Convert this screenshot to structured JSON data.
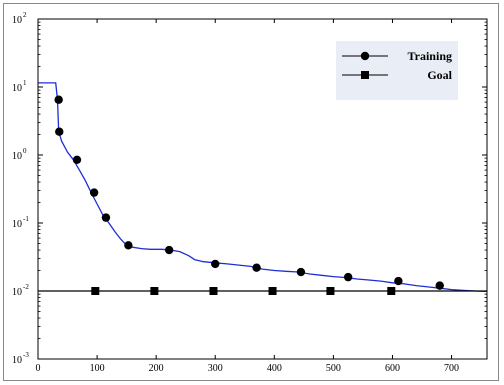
{
  "chart_data": {
    "type": "line",
    "title": "",
    "xlabel": "",
    "ylabel": "",
    "xlim": [
      0,
      760
    ],
    "ylim": [
      0.001,
      100
    ],
    "yscale": "log",
    "grid": false,
    "legend_position": "top-right",
    "x_ticks": [
      0,
      100,
      200,
      300,
      400,
      500,
      600,
      700
    ],
    "y_ticks": [
      {
        "base": "10",
        "exp": "-3",
        "value": 0.001
      },
      {
        "base": "10",
        "exp": "-2",
        "value": 0.01
      },
      {
        "base": "10",
        "exp": "-1",
        "value": 0.1
      },
      {
        "base": "10",
        "exp": "0",
        "value": 1
      },
      {
        "base": "10",
        "exp": "1",
        "value": 10
      },
      {
        "base": "10",
        "exp": "2",
        "value": 100
      }
    ],
    "series": [
      {
        "name": "Training",
        "color": "#1f2dd8",
        "marker": "circle",
        "curve": [
          [
            0,
            11.5
          ],
          [
            30,
            11.5
          ],
          [
            33,
            6.5
          ],
          [
            35,
            2.2
          ],
          [
            40,
            1.6
          ],
          [
            50,
            1.1
          ],
          [
            60,
            0.85
          ],
          [
            70,
            0.6
          ],
          [
            80,
            0.42
          ],
          [
            90,
            0.28
          ],
          [
            100,
            0.19
          ],
          [
            110,
            0.13
          ],
          [
            120,
            0.1
          ],
          [
            130,
            0.075
          ],
          [
            140,
            0.058
          ],
          [
            150,
            0.047
          ],
          [
            160,
            0.044
          ],
          [
            175,
            0.042
          ],
          [
            190,
            0.041
          ],
          [
            210,
            0.041
          ],
          [
            225,
            0.04
          ],
          [
            240,
            0.038
          ],
          [
            255,
            0.033
          ],
          [
            265,
            0.029
          ],
          [
            280,
            0.027
          ],
          [
            300,
            0.026
          ],
          [
            320,
            0.025
          ],
          [
            340,
            0.024
          ],
          [
            360,
            0.023
          ],
          [
            380,
            0.021
          ],
          [
            400,
            0.02
          ],
          [
            420,
            0.0195
          ],
          [
            440,
            0.019
          ],
          [
            460,
            0.0178
          ],
          [
            480,
            0.017
          ],
          [
            500,
            0.0163
          ],
          [
            520,
            0.0158
          ],
          [
            540,
            0.015
          ],
          [
            560,
            0.0145
          ],
          [
            580,
            0.014
          ],
          [
            600,
            0.0132
          ],
          [
            620,
            0.0127
          ],
          [
            640,
            0.012
          ],
          [
            660,
            0.0115
          ],
          [
            680,
            0.011
          ],
          [
            700,
            0.0105
          ],
          [
            720,
            0.0102
          ],
          [
            740,
            0.01
          ],
          [
            760,
            0.0099
          ]
        ],
        "marker_points": [
          [
            35,
            6.5
          ],
          [
            36,
            2.2
          ],
          [
            66,
            0.85
          ],
          [
            95,
            0.28
          ],
          [
            115,
            0.12
          ],
          [
            153,
            0.047
          ],
          [
            222,
            0.04
          ],
          [
            300,
            0.025
          ],
          [
            370,
            0.022
          ],
          [
            445,
            0.019
          ],
          [
            525,
            0.016
          ],
          [
            610,
            0.014
          ],
          [
            680,
            0.012
          ]
        ]
      },
      {
        "name": "Goal",
        "color": "#000000",
        "marker": "square",
        "curve": [
          [
            0,
            0.01
          ],
          [
            760,
            0.01
          ]
        ],
        "marker_points": [
          [
            97,
            0.01
          ],
          [
            197,
            0.01
          ],
          [
            297,
            0.01
          ],
          [
            397,
            0.01
          ],
          [
            495,
            0.01
          ],
          [
            598,
            0.01
          ]
        ]
      }
    ]
  }
}
